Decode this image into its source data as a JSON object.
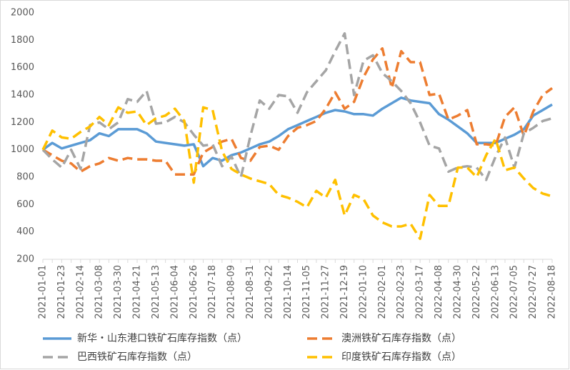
{
  "chart_data": {
    "type": "line",
    "categories": [
      "2021-01-01",
      null,
      "2021-01-23",
      null,
      "2021-02-14",
      null,
      "2021-03-08",
      null,
      "2021-03-30",
      null,
      "2021-04-21",
      null,
      "2021-05-13",
      null,
      "2021-06-04",
      null,
      "2021-06-26",
      null,
      "2021-07-18",
      null,
      "2021-08-09",
      null,
      "2021-08-31",
      null,
      "2021-09-22",
      null,
      "2021-10-14",
      null,
      "2021-11-05",
      null,
      "2021-11-27",
      null,
      "2021-12-19",
      null,
      "2022-01-10",
      null,
      "2022-02-01",
      null,
      "2022-02-23",
      null,
      "2022-03-17",
      null,
      "2022-04-08",
      null,
      "2022-04-30",
      null,
      "2022-05-22",
      null,
      "2022-06-13",
      null,
      "2022-07-05",
      null,
      "2022-07-27",
      null,
      "2022-08-18"
    ],
    "series": [
      {
        "name": "新华・山东港口铁矿石库存指数（点）",
        "color": "#5b9bd5",
        "dashed": false,
        "values": [
          1000,
          1050,
          1010,
          1030,
          1050,
          1070,
          1120,
          1100,
          1150,
          1150,
          1150,
          1120,
          1060,
          1050,
          1040,
          1030,
          1040,
          880,
          940,
          920,
          960,
          980,
          1010,
          1040,
          1060,
          1100,
          1150,
          1180,
          1210,
          1240,
          1270,
          1290,
          1280,
          1260,
          1260,
          1250,
          1300,
          1340,
          1380,
          1360,
          1350,
          1340,
          1260,
          1220,
          1170,
          1120,
          1050,
          1050,
          1050,
          1080,
          1110,
          1150,
          1250,
          1290,
          1330
        ]
      },
      {
        "name": "澳洲铁矿石库存指数（点）",
        "color": "#ed7d31",
        "dashed": true,
        "values": [
          1000,
          960,
          920,
          900,
          840,
          880,
          900,
          940,
          920,
          940,
          930,
          930,
          920,
          920,
          820,
          820,
          820,
          980,
          1020,
          1060,
          1080,
          940,
          920,
          1020,
          1030,
          1000,
          1100,
          1160,
          1180,
          1210,
          1300,
          1420,
          1300,
          1350,
          1530,
          1660,
          1740,
          1450,
          1720,
          1640,
          1640,
          1400,
          1410,
          1220,
          1250,
          1290,
          1040,
          1040,
          1030,
          1240,
          1310,
          1100,
          1280,
          1400,
          1450
        ]
      },
      {
        "name": "巴西铁矿石库存指数（点）",
        "color": "#a5a5a5",
        "dashed": true,
        "values": [
          1000,
          930,
          870,
          1000,
          860,
          1180,
          1200,
          1150,
          1200,
          1370,
          1350,
          1430,
          1190,
          1200,
          1240,
          1200,
          1110,
          1030,
          1040,
          880,
          950,
          800,
          1100,
          1360,
          1300,
          1400,
          1390,
          1270,
          1420,
          1500,
          1580,
          1720,
          1850,
          1400,
          1650,
          1690,
          1560,
          1500,
          1430,
          1340,
          1200,
          1030,
          1010,
          840,
          870,
          880,
          870,
          780,
          950,
          1090,
          870,
          1120,
          1160,
          1210,
          1230
        ]
      },
      {
        "name": "印度铁矿石库存指数（点）",
        "color": "#ffc000",
        "dashed": true,
        "values": [
          1000,
          1140,
          1090,
          1080,
          1130,
          1170,
          1240,
          1180,
          1310,
          1270,
          1280,
          1180,
          1230,
          1250,
          1300,
          1210,
          760,
          1310,
          1290,
          990,
          860,
          820,
          790,
          770,
          750,
          670,
          650,
          620,
          580,
          700,
          650,
          780,
          520,
          670,
          640,
          520,
          470,
          440,
          440,
          460,
          350,
          670,
          590,
          590,
          870,
          870,
          800,
          960,
          1080,
          850,
          870,
          790,
          720,
          680,
          660
        ]
      }
    ],
    "ylim": [
      200,
      2000
    ],
    "yticks": [
      200,
      400,
      600,
      800,
      1000,
      1200,
      1400,
      1600,
      1800,
      2000
    ]
  }
}
